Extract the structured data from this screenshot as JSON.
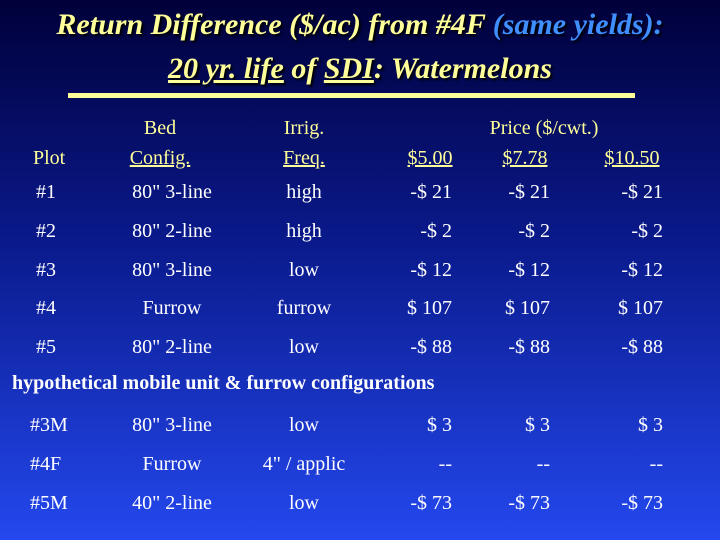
{
  "title": {
    "line1_main": "Return Difference ($/ac) from #4F ",
    "line1_paren": "(same yields):",
    "line2_pre": "20 yr. life",
    "line2_mid": " of ",
    "line2_sdi": "SDI",
    "line2_post": ": Watermelons"
  },
  "headers": {
    "plot": "Plot",
    "bed_line1": "Bed",
    "bed_line2": "Config.",
    "irrig_line1": "Irrig.",
    "irrig_line2": "Freq.",
    "price": "Price ($/cwt.)",
    "prices": [
      "$5.00",
      "$7.78",
      "$10.50"
    ]
  },
  "rows": [
    {
      "plot": "#1",
      "bed": "80\" 3-line",
      "irrig": "high",
      "v": [
        "-$ 21",
        "-$ 21",
        "-$ 21"
      ]
    },
    {
      "plot": "#2",
      "bed": "80\" 2-line",
      "irrig": "high",
      "v": [
        "-$ 2",
        "-$ 2",
        "-$ 2"
      ]
    },
    {
      "plot": "#3",
      "bed": "80\" 3-line",
      "irrig": "low",
      "v": [
        "-$ 12",
        "-$ 12",
        "-$ 12"
      ]
    },
    {
      "plot": "#4",
      "bed": "Furrow",
      "irrig": "furrow",
      "v": [
        "$ 107",
        "$ 107",
        "$ 107"
      ]
    },
    {
      "plot": "#5",
      "bed": "80\" 2-line",
      "irrig": "low",
      "v": [
        "-$ 88",
        "-$ 88",
        "-$ 88"
      ]
    }
  ],
  "note": "hypothetical mobile unit & furrow configurations",
  "hypo_rows": [
    {
      "plot": "#3M",
      "bed": "80\" 3-line",
      "irrig": "low",
      "v": [
        "$ 3",
        "$ 3",
        "$ 3"
      ]
    },
    {
      "plot": "#4F",
      "bed": "Furrow",
      "irrig": "4\" / applic",
      "v": [
        "--",
        "--",
        "--"
      ]
    },
    {
      "plot": "#5M",
      "bed": "40\" 2-line",
      "irrig": "low",
      "v": [
        "-$ 73",
        "-$ 73",
        "-$ 73"
      ]
    }
  ]
}
